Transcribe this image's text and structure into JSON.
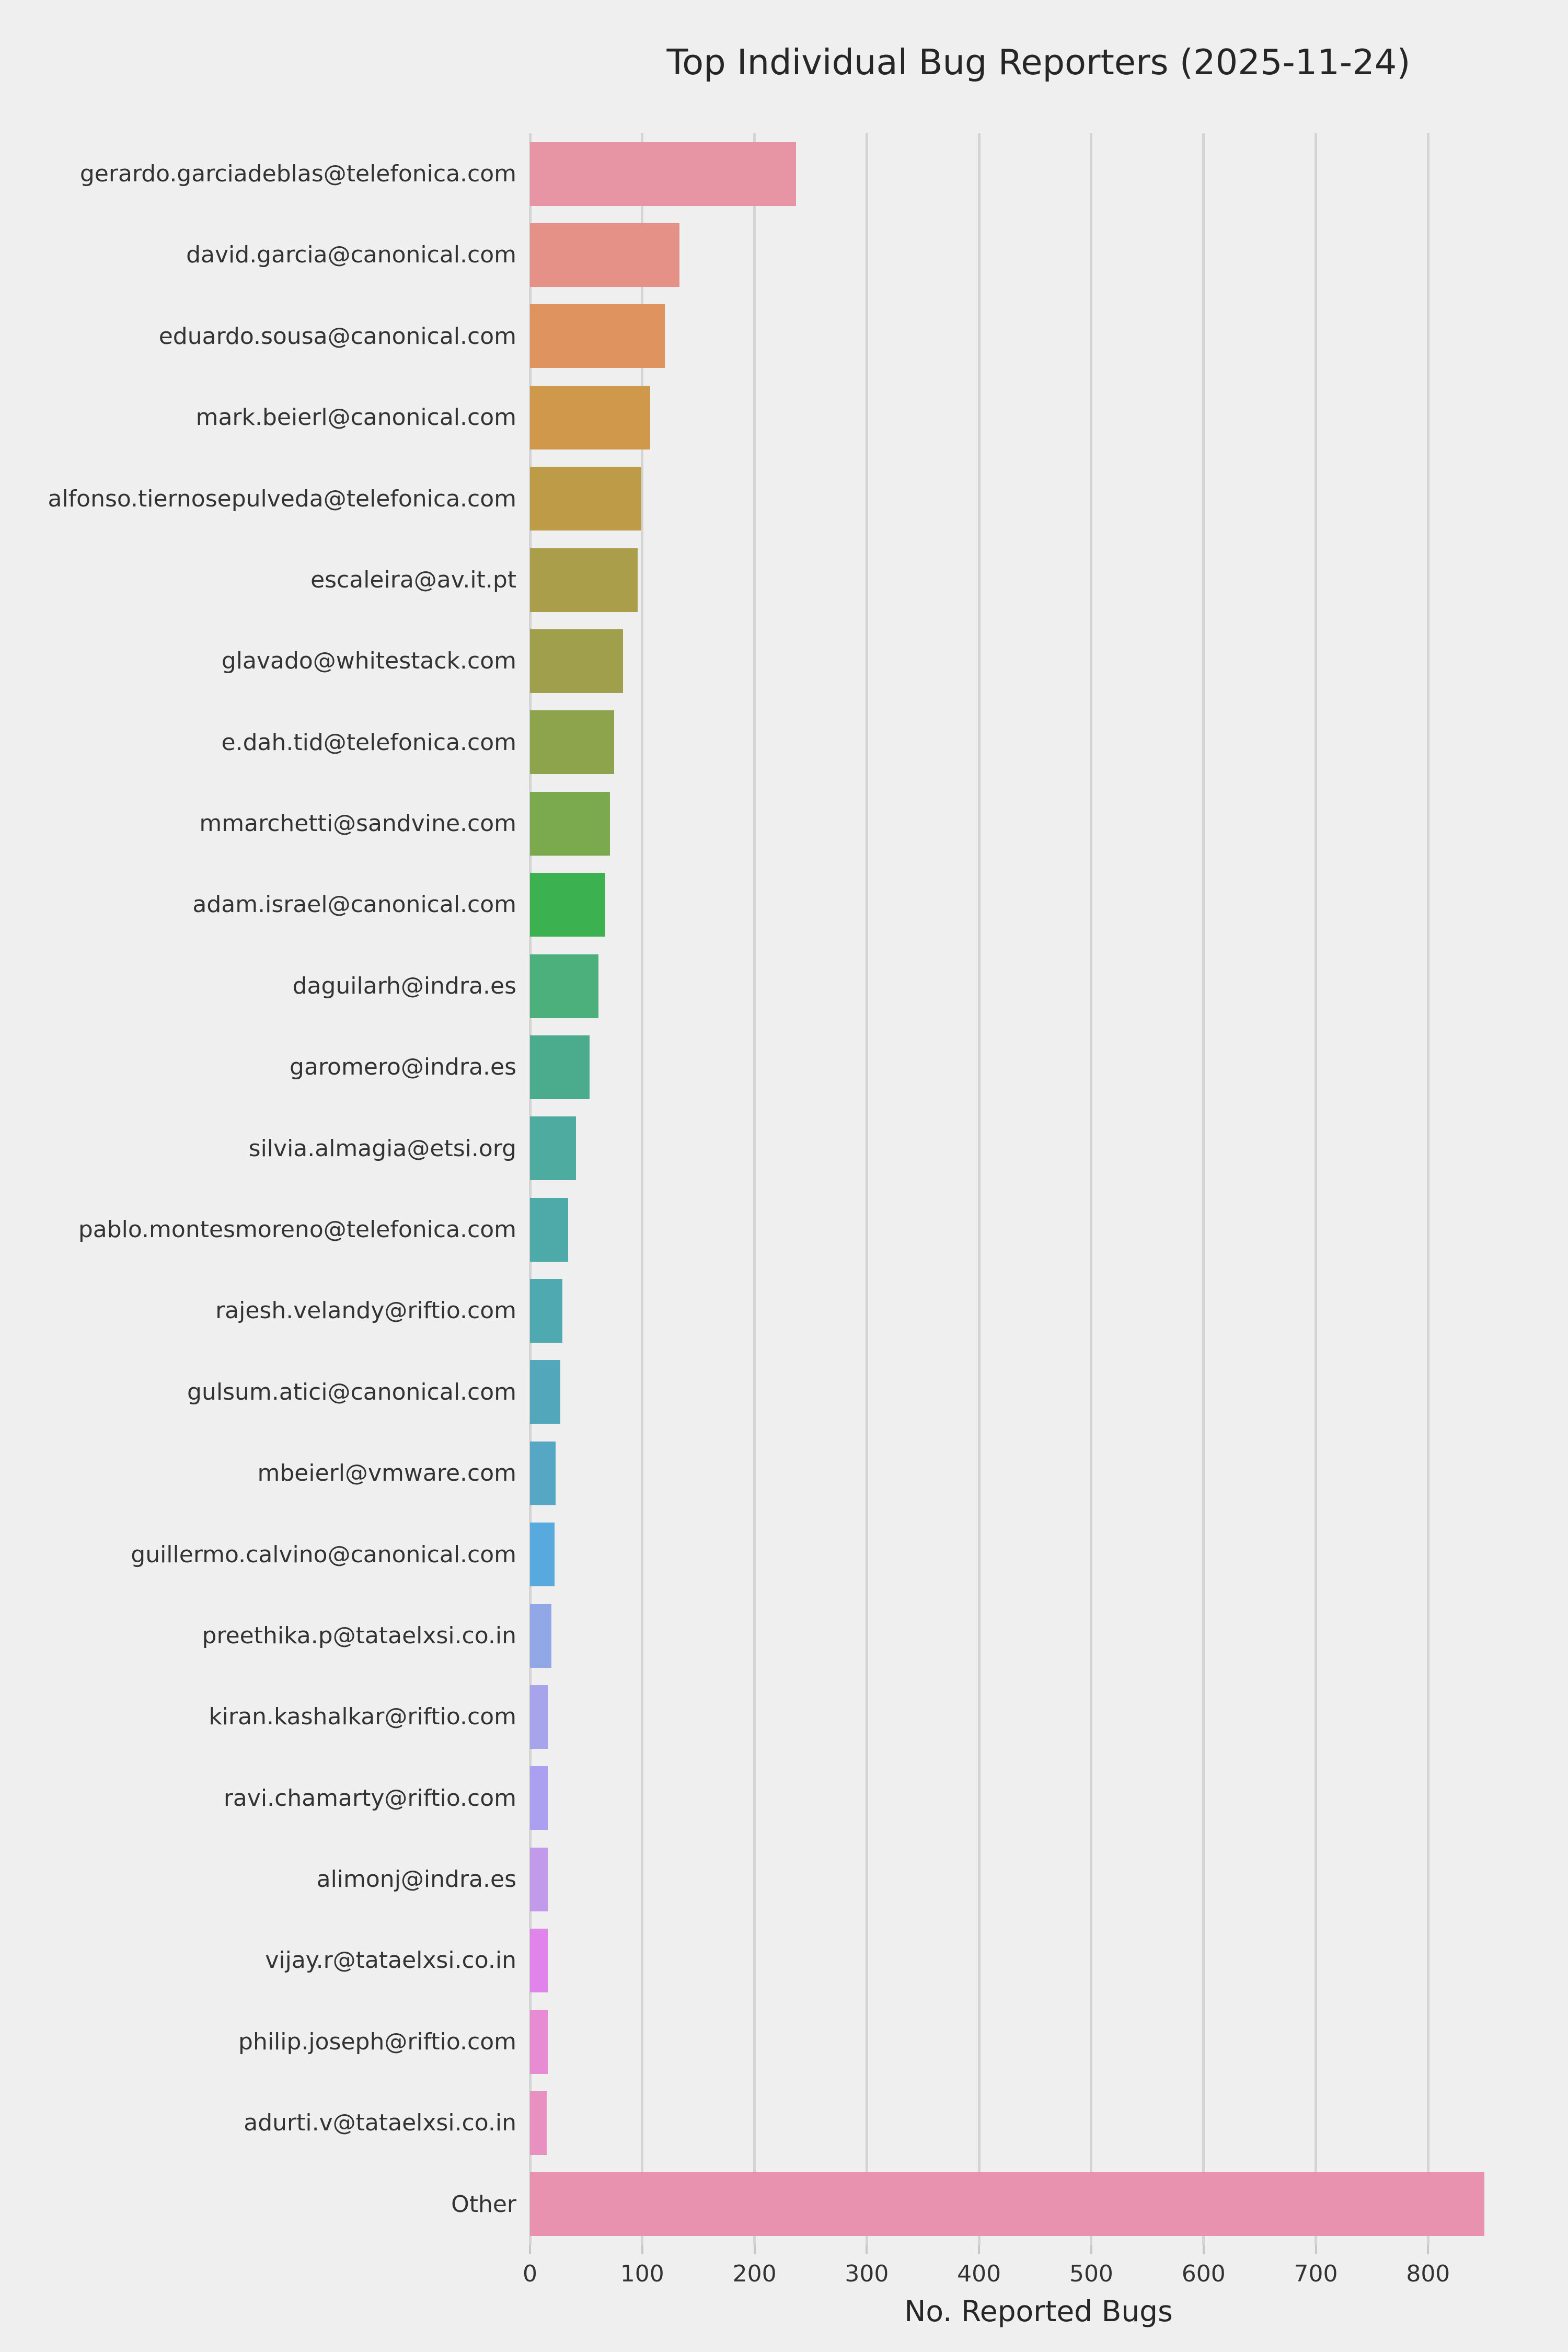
{
  "title": "Top Individual Bug Reporters (2025-11-24)",
  "chart_data": {
    "type": "bar",
    "orientation": "horizontal",
    "title": "Top Individual Bug Reporters (2025-11-24)",
    "xlabel": "No. Reported Bugs",
    "ylabel": "",
    "xlim": [
      0,
      906
    ],
    "grid": true,
    "x_ticks": [
      0,
      100,
      200,
      300,
      400,
      500,
      600,
      700,
      800
    ],
    "categories": [
      "gerardo.garciadeblas@telefonica.com",
      "david.garcia@canonical.com",
      "eduardo.sousa@canonical.com",
      "mark.beierl@canonical.com",
      "alfonso.tiernosepulveda@telefonica.com",
      "escaleira@av.it.pt",
      "glavado@whitestack.com",
      "e.dah.tid@telefonica.com",
      "mmarchetti@sandvine.com",
      "adam.israel@canonical.com",
      "daguilarh@indra.es",
      "garomero@indra.es",
      "silvia.almagia@etsi.org",
      "pablo.montesmoreno@telefonica.com",
      "rajesh.velandy@riftio.com",
      "gulsum.atici@canonical.com",
      "mbeierl@vmware.com",
      "guillermo.calvino@canonical.com",
      "preethika.p@tataelxsi.co.in",
      "kiran.kashalkar@riftio.com",
      "ravi.chamarty@riftio.com",
      "alimonj@indra.es",
      "vijay.r@tataelxsi.co.in",
      "philip.joseph@riftio.com",
      "adurti.v@tataelxsi.co.in",
      "Other"
    ],
    "values": [
      237,
      133,
      120,
      107,
      99,
      96,
      83,
      75,
      71,
      67,
      61,
      53,
      41,
      34,
      29,
      27,
      23,
      22,
      19,
      16,
      16,
      16,
      16,
      16,
      15,
      850
    ],
    "colors": [
      "#e794a4",
      "#e59187",
      "#df945f",
      "#d0984a",
      "#bd9b47",
      "#ab9e4b",
      "#a0a04c",
      "#8da44d",
      "#7aa94e",
      "#3cb150",
      "#4bb07b",
      "#4bac8d",
      "#4dabA0",
      "#4eaaa8",
      "#4fa9b1",
      "#52a8ba",
      "#55a7c4",
      "#58a9dd",
      "#92a8e6",
      "#a8a4ec",
      "#ab9ff0",
      "#c29aea",
      "#e083eb",
      "#e78cd2",
      "#e890c0",
      "#e892b0"
    ],
    "background_color": "#efefef",
    "gridline_color": "#d4d4d4",
    "text_color": "#333333",
    "legend": false
  }
}
